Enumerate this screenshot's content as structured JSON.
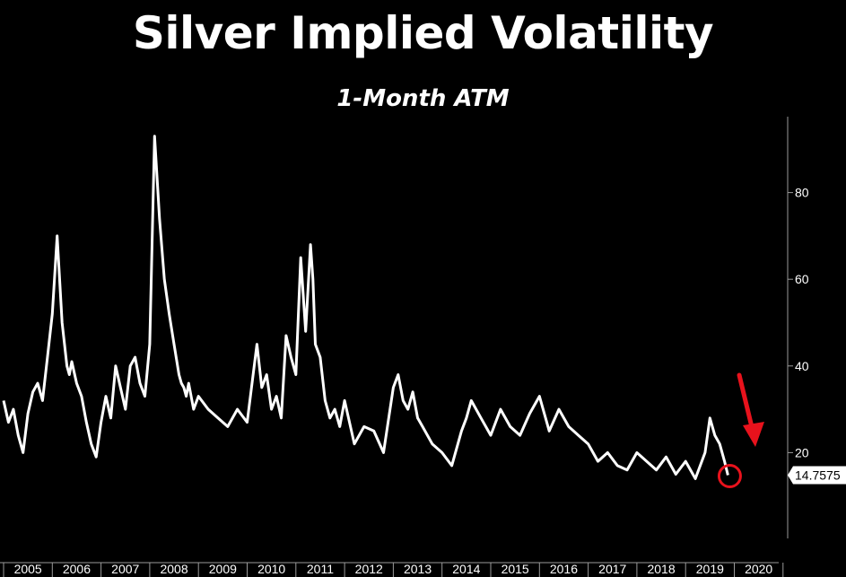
{
  "title": "Silver Implied Volatility",
  "subtitle": "1-Month ATM",
  "chart_data": {
    "type": "line",
    "title": "Silver Implied Volatility",
    "subtitle": "1-Month ATM",
    "xlabel": "",
    "ylabel": "",
    "x_tick_labels": [
      "2005",
      "2006",
      "2007",
      "2008",
      "2009",
      "2010",
      "2011",
      "2012",
      "2013",
      "2014",
      "2015",
      "2016",
      "2017",
      "2018",
      "2019",
      "2020"
    ],
    "y_tick_labels": [
      "20",
      "40",
      "60",
      "80"
    ],
    "ylim": [
      0,
      95
    ],
    "xlim": [
      2005.0,
      2020.9
    ],
    "y_axis_position": "right",
    "grid": false,
    "last_value_label": "14.7575",
    "colors": {
      "line": "#ffffff",
      "annotation": "#e8121c",
      "background": "#000000"
    },
    "annotations": [
      "red-arrow-down",
      "red-circle-last-value"
    ],
    "series": [
      {
        "x": [
          2005.0,
          2005.1,
          2005.2,
          2005.3,
          2005.4,
          2005.5,
          2005.6,
          2005.7,
          2005.8,
          2005.9,
          2006.0,
          2006.1,
          2006.2,
          2006.25,
          2006.3,
          2006.35,
          2006.4,
          2006.5,
          2006.6,
          2006.7,
          2006.8,
          2006.9,
          2007.0,
          2007.1,
          2007.2,
          2007.3,
          2007.4,
          2007.5,
          2007.6,
          2007.7,
          2007.8,
          2007.9,
          2008.0,
          2008.1,
          2008.2,
          2008.3,
          2008.4,
          2008.5,
          2008.6,
          2008.65,
          2008.7,
          2008.75,
          2008.8,
          2008.9,
          2009.0,
          2009.2,
          2009.4,
          2009.6,
          2009.8,
          2010.0,
          2010.2,
          2010.3,
          2010.4,
          2010.5,
          2010.6,
          2010.7,
          2010.8,
          2010.9,
          2011.0,
          2011.1,
          2011.2,
          2011.3,
          2011.35,
          2011.4,
          2011.5,
          2011.6,
          2011.7,
          2011.8,
          2011.9,
          2012.0,
          2012.2,
          2012.4,
          2012.6,
          2012.8,
          2013.0,
          2013.1,
          2013.2,
          2013.3,
          2013.4,
          2013.5,
          2013.6,
          2013.8,
          2014.0,
          2014.2,
          2014.4,
          2014.5,
          2014.6,
          2014.8,
          2015.0,
          2015.2,
          2015.4,
          2015.6,
          2015.8,
          2016.0,
          2016.2,
          2016.4,
          2016.6,
          2016.8,
          2017.0,
          2017.2,
          2017.4,
          2017.6,
          2017.8,
          2018.0,
          2018.2,
          2018.4,
          2018.6,
          2018.8,
          2019.0,
          2019.2,
          2019.4,
          2019.5,
          2019.6,
          2019.7,
          2019.8,
          2019.87
        ],
        "y": [
          32,
          27,
          30,
          24,
          20,
          29,
          34,
          36,
          32,
          42,
          52,
          70,
          50,
          45,
          40,
          38,
          41,
          36,
          33,
          27,
          22,
          19,
          27,
          33,
          28,
          40,
          35,
          30,
          40,
          42,
          36,
          33,
          45,
          93,
          74,
          60,
          52,
          45,
          38,
          36,
          35,
          33,
          36,
          30,
          33,
          30,
          28,
          26,
          30,
          27,
          45,
          35,
          38,
          30,
          33,
          28,
          47,
          42,
          38,
          65,
          48,
          68,
          60,
          45,
          42,
          32,
          28,
          30,
          26,
          32,
          22,
          26,
          25,
          20,
          35,
          38,
          32,
          30,
          34,
          28,
          26,
          22,
          20,
          17,
          25,
          28,
          32,
          28,
          24,
          30,
          26,
          24,
          29,
          33,
          25,
          30,
          26,
          24,
          22,
          18,
          20,
          17,
          16,
          20,
          18,
          16,
          19,
          15,
          18,
          14,
          20,
          28,
          24,
          22,
          18,
          14.8
        ]
      }
    ]
  }
}
